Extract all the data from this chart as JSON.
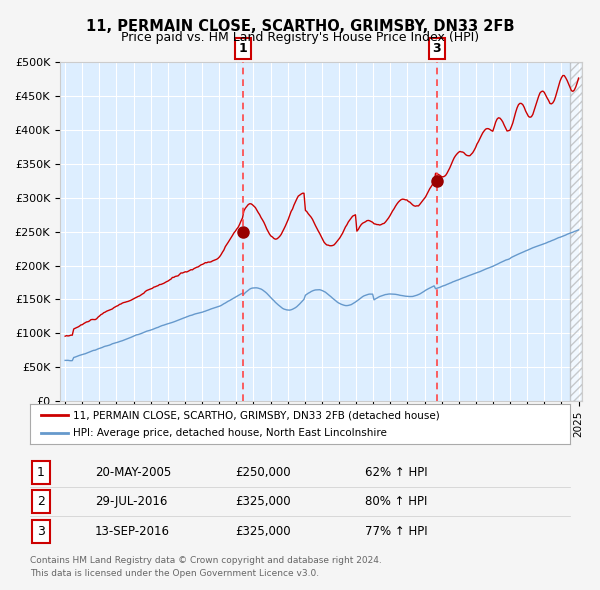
{
  "title": "11, PERMAIN CLOSE, SCARTHO, GRIMSBY, DN33 2FB",
  "subtitle": "Price paid vs. HM Land Registry's House Price Index (HPI)",
  "legend_line1": "11, PERMAIN CLOSE, SCARTHO, GRIMSBY, DN33 2FB (detached house)",
  "legend_line2": "HPI: Average price, detached house, North East Lincolnshire",
  "footer1": "Contains HM Land Registry data © Crown copyright and database right 2024.",
  "footer2": "This data is licensed under the Open Government Licence v3.0.",
  "transactions": [
    {
      "num": 1,
      "date": "20-MAY-2005",
      "price": 250000,
      "pct": "62%",
      "dir": "↑",
      "label": "HPI"
    },
    {
      "num": 2,
      "date": "29-JUL-2016",
      "price": 325000,
      "pct": "80%",
      "dir": "↑",
      "label": "HPI"
    },
    {
      "num": 3,
      "date": "13-SEP-2016",
      "price": 325000,
      "pct": "77%",
      "dir": "↑",
      "label": "HPI"
    }
  ],
  "red_line_color": "#cc0000",
  "blue_line_color": "#6699cc",
  "background_color": "#f5f5f5",
  "plot_bg_color": "#ddeeff",
  "vline_color": "#ff4444",
  "marker_color": "#990000",
  "grid_color": "#ffffff",
  "ylim": [
    0,
    500000
  ],
  "yticks": [
    0,
    50000,
    100000,
    150000,
    200000,
    250000,
    300000,
    350000,
    400000,
    450000,
    500000
  ],
  "x_start_year": 1995,
  "x_end_year": 2025,
  "transaction1_year": 2005.38,
  "transaction2_year": 2016.57,
  "transaction3_year": 2016.71,
  "transaction1_price": 250000,
  "transaction2_price": 325000,
  "transaction3_price": 325000
}
